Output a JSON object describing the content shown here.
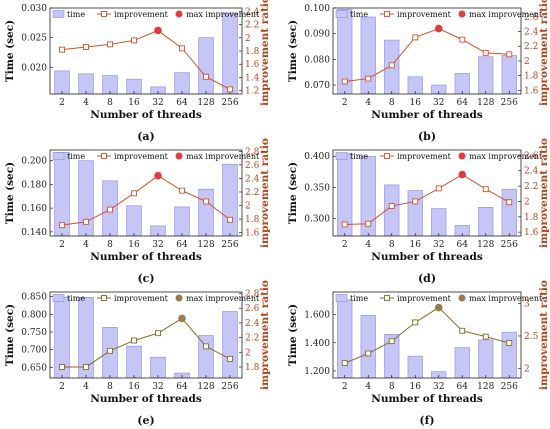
{
  "colors": {
    "bar_fill": "#c5c6f5",
    "bar_stroke": "#8a8be0",
    "line": "#d2522a",
    "line_olive": "#8b6a22",
    "max_point_red": "#e23b3b",
    "max_point_olive": "#9a7b4b",
    "right_axis": "#b5451b"
  },
  "legend": {
    "time": "time",
    "improvement": "improvement",
    "max_improvement": "max improvement"
  },
  "chart_data": [
    {
      "type": "bar",
      "panel": "(a)",
      "categories": [
        "2",
        "4",
        "8",
        "16",
        "32",
        "64",
        "128",
        "256"
      ],
      "xlabel": "Number of threads",
      "ylabel": "Time (sec)",
      "y2label": "improvement ratio",
      "ylim": [
        0.0155,
        0.03
      ],
      "yticks": [
        "0.030",
        "0.025",
        "0.020"
      ],
      "ytick_vals": [
        0.03,
        0.025,
        0.02
      ],
      "y2lim": [
        1.15,
        2.45
      ],
      "y2ticks": [
        "2.4",
        "2.2",
        "2",
        "1.8",
        "1.6",
        "1.4",
        "1.2"
      ],
      "y2tick_vals": [
        2.4,
        2.2,
        2.0,
        1.8,
        1.6,
        1.4,
        1.2
      ],
      "series": [
        {
          "name": "time",
          "values": [
            0.0194,
            0.0189,
            0.0186,
            0.018,
            0.0167,
            0.0191,
            0.025,
            0.0291
          ]
        },
        {
          "name": "improvement",
          "values": [
            1.82,
            1.86,
            1.9,
            1.96,
            2.11,
            1.84,
            1.41,
            1.22
          ]
        }
      ],
      "max_index": 4,
      "style": "red"
    },
    {
      "type": "bar",
      "panel": "(b)",
      "categories": [
        "2",
        "4",
        "8",
        "16",
        "32",
        "64",
        "128",
        "256"
      ],
      "xlabel": "Number of threads",
      "ylabel": "Time (sec)",
      "y2label": "improvement ratio",
      "ylim": [
        0.0665,
        0.1
      ],
      "yticks": [
        "0.100",
        "0.090",
        "0.080",
        "0.070"
      ],
      "ytick_vals": [
        0.1,
        0.09,
        0.08,
        0.07
      ],
      "y2lim": [
        1.55,
        2.72
      ],
      "y2ticks": [
        "2.6",
        "2.4",
        "2.2",
        "2",
        "1.8",
        "1.6"
      ],
      "y2tick_vals": [
        2.6,
        2.4,
        2.2,
        2.0,
        1.8,
        1.6
      ],
      "series": [
        {
          "name": "time",
          "values": [
            0.0995,
            0.0965,
            0.0875,
            0.0732,
            0.07,
            0.0745,
            0.081,
            0.0815
          ]
        },
        {
          "name": "improvement",
          "values": [
            1.72,
            1.76,
            1.94,
            2.32,
            2.44,
            2.29,
            2.11,
            2.09
          ]
        }
      ],
      "max_index": 4,
      "style": "red"
    },
    {
      "type": "bar",
      "panel": "(c)",
      "categories": [
        "2",
        "4",
        "8",
        "16",
        "32",
        "64",
        "128",
        "256"
      ],
      "xlabel": "Number of threads",
      "ylabel": "Time (sec)",
      "y2label": "improvement ratio",
      "ylim": [
        0.1365,
        0.209
      ],
      "yticks": [
        "0.200",
        "0.180",
        "0.160",
        "0.140"
      ],
      "ytick_vals": [
        0.2,
        0.18,
        0.16,
        0.14
      ],
      "y2lim": [
        1.55,
        2.82
      ],
      "y2ticks": [
        "2.8",
        "2.6",
        "2.4",
        "2.2",
        "2",
        "1.8",
        "1.6"
      ],
      "y2tick_vals": [
        2.8,
        2.6,
        2.4,
        2.2,
        2.0,
        1.8,
        1.6
      ],
      "series": [
        {
          "name": "time",
          "values": [
            0.207,
            0.2,
            0.183,
            0.162,
            0.145,
            0.161,
            0.176,
            0.197
          ]
        },
        {
          "name": "improvement",
          "values": [
            1.71,
            1.76,
            1.94,
            2.18,
            2.44,
            2.22,
            2.06,
            1.79
          ]
        }
      ],
      "max_index": 4,
      "style": "red"
    },
    {
      "type": "bar",
      "panel": "(d)",
      "categories": [
        "2",
        "4",
        "8",
        "16",
        "32",
        "64",
        "128",
        "256"
      ],
      "xlabel": "Number of threads",
      "ylabel": "Time (sec)",
      "y2label": "improvement ratio",
      "ylim": [
        0.272,
        0.41
      ],
      "yticks": [
        "0.400",
        "0.350",
        "0.300"
      ],
      "ytick_vals": [
        0.4,
        0.35,
        0.3
      ],
      "y2lim": [
        1.55,
        2.67
      ],
      "y2ticks": [
        "2.6",
        "2.4",
        "2.2",
        "2",
        "1.8",
        "1.6"
      ],
      "y2tick_vals": [
        2.6,
        2.4,
        2.2,
        2.0,
        1.8,
        1.6
      ],
      "series": [
        {
          "name": "time",
          "values": [
            0.405,
            0.4,
            0.354,
            0.345,
            0.316,
            0.289,
            0.318,
            0.347
          ]
        },
        {
          "name": "improvement",
          "values": [
            1.7,
            1.71,
            1.94,
            2.0,
            2.17,
            2.35,
            2.16,
            1.99
          ]
        }
      ],
      "max_index": 5,
      "style": "red"
    },
    {
      "type": "bar",
      "panel": "(e)",
      "categories": [
        "2",
        "4",
        "8",
        "16",
        "32",
        "64",
        "128",
        "256"
      ],
      "xlabel": "Number of threads",
      "ylabel": "Time (sec)",
      "y2label": "improvement ratio",
      "ylim": [
        0.62,
        0.863
      ],
      "yticks": [
        "0.850",
        "0.800",
        "0.750",
        "0.700",
        "0.650"
      ],
      "ytick_vals": [
        0.85,
        0.8,
        0.75,
        0.7,
        0.65
      ],
      "y2lim": [
        1.65,
        2.82
      ],
      "y2ticks": [
        "2.8",
        "2.6",
        "2.4",
        "2.2",
        "2",
        "1.8"
      ],
      "y2tick_vals": [
        2.8,
        2.6,
        2.4,
        2.2,
        2.0,
        1.8
      ],
      "series": [
        {
          "name": "time",
          "values": [
            0.848,
            0.848,
            0.763,
            0.71,
            0.679,
            0.634,
            0.74,
            0.808
          ]
        },
        {
          "name": "improvement",
          "values": [
            1.8,
            1.8,
            2.02,
            2.16,
            2.26,
            2.46,
            2.08,
            1.91
          ]
        }
      ],
      "max_index": 5,
      "style": "olive"
    },
    {
      "type": "bar",
      "panel": "(f)",
      "categories": [
        "2",
        "4",
        "8",
        "16",
        "32",
        "64",
        "128",
        "256"
      ],
      "xlabel": "Number of threads",
      "ylabel": "Time (sec)",
      "y2label": "improvement ratio",
      "ylim": [
        1.15,
        1.76
      ],
      "yticks": [
        "1.600",
        "1.400",
        "1.200"
      ],
      "ytick_vals": [
        1.6,
        1.4,
        1.2
      ],
      "y2lim": [
        1.85,
        3.18
      ],
      "y2ticks": [
        "3",
        "2.5",
        "2"
      ],
      "y2tick_vals": [
        3.0,
        2.5,
        2.0
      ],
      "series": [
        {
          "name": "time",
          "values": [
            1.705,
            1.595,
            1.46,
            1.305,
            1.195,
            1.365,
            1.42,
            1.475
          ]
        },
        {
          "name": "improvement",
          "values": [
            2.08,
            2.23,
            2.42,
            2.71,
            2.94,
            2.58,
            2.49,
            2.39
          ]
        }
      ],
      "max_index": 4,
      "style": "olive"
    }
  ]
}
